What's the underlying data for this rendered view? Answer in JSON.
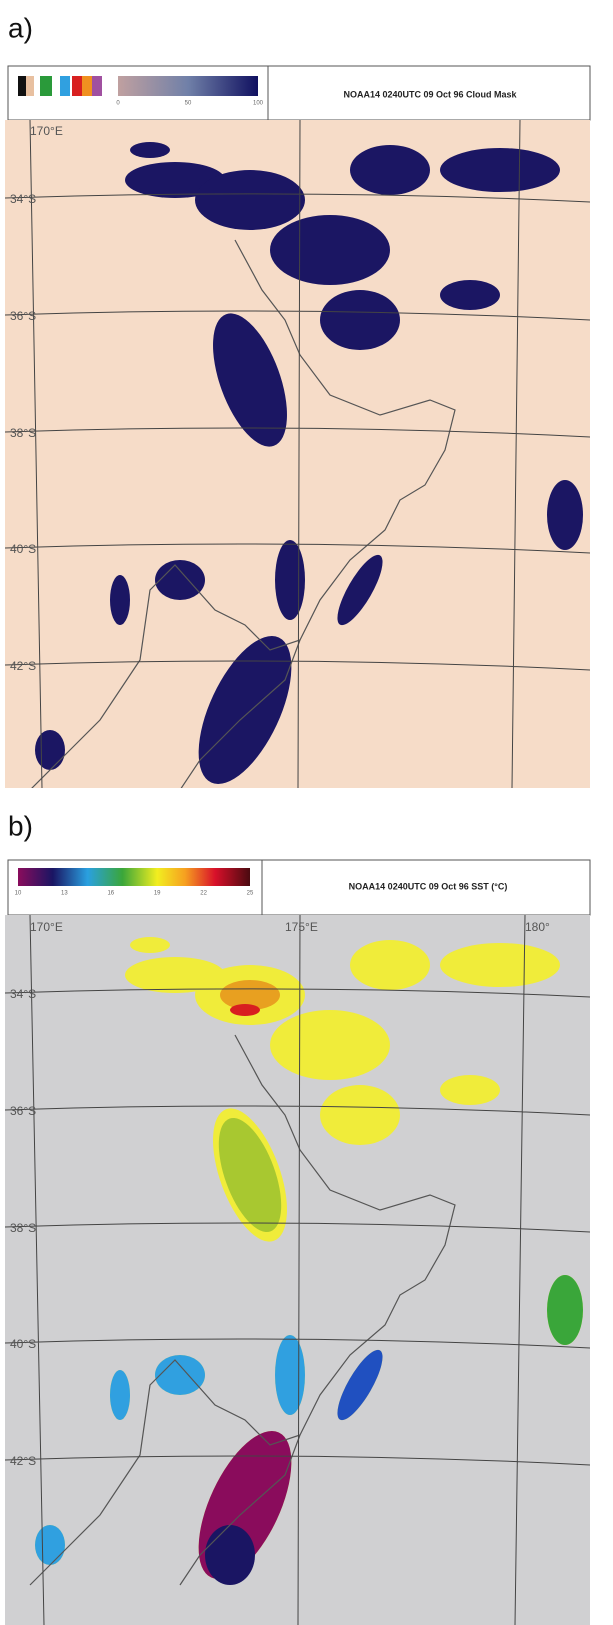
{
  "panels": [
    {
      "label": "a)",
      "title": "NOAA14 0240UTC 09 Oct 96 Cloud Mask",
      "legend_ticks": [
        "0",
        "50",
        "100"
      ],
      "map_labels": [
        "170°E",
        "34°S",
        "36°S",
        "38°S",
        "40°S",
        "42°S"
      ]
    },
    {
      "label": "b)",
      "title": "NOAA14 0240UTC 09 Oct 96 SST (°C)",
      "legend_ticks": [
        "10",
        "13",
        "16",
        "19",
        "22",
        "25"
      ],
      "map_labels": [
        "170°E",
        "175°E",
        "180°",
        "34°S",
        "36°S",
        "38°S",
        "40°S",
        "42°S"
      ]
    }
  ]
}
